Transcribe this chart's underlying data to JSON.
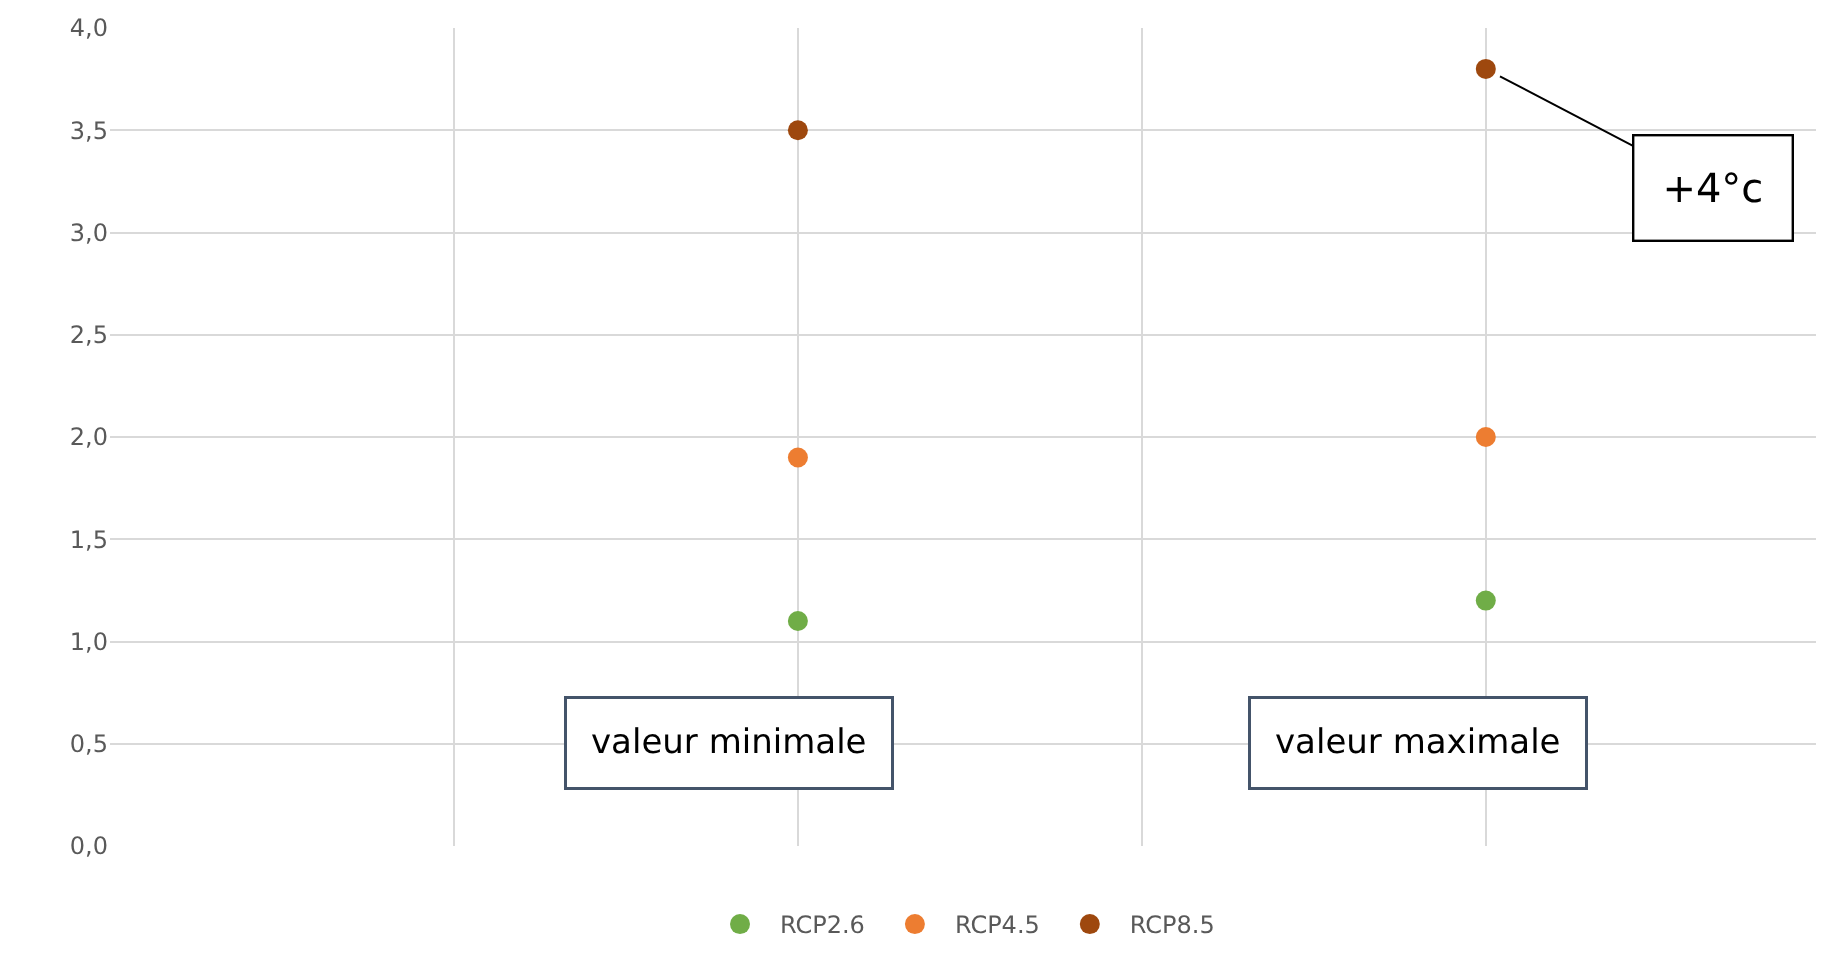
{
  "chart_data": {
    "type": "scatter",
    "categories": [
      null,
      null
    ],
    "series": [
      {
        "name": "RCP2.6",
        "color": "#70ad47",
        "values": [
          1.1,
          1.2
        ]
      },
      {
        "name": "RCP4.5",
        "color": "#ed7d31",
        "values": [
          1.9,
          2.0
        ]
      },
      {
        "name": "RCP8.5",
        "color": "#9e480e",
        "values": [
          3.5,
          3.8
        ]
      }
    ],
    "ylim": [
      0,
      4
    ],
    "yticks": [
      {
        "value": 0,
        "label": "0,0"
      },
      {
        "value": 0.5,
        "label": "0,5"
      },
      {
        "value": 1,
        "label": "1,0"
      },
      {
        "value": 1.5,
        "label": "1,5"
      },
      {
        "value": 2,
        "label": "2,0"
      },
      {
        "value": 2.5,
        "label": "2,5"
      },
      {
        "value": 3,
        "label": "3,0"
      },
      {
        "value": 3.5,
        "label": "3,5"
      },
      {
        "value": 4,
        "label": "4,0"
      }
    ],
    "annotations": [
      "valeur minimale",
      "valeur maximale",
      "+4°c"
    ],
    "grid": true,
    "legend": "bottom",
    "marker": "circle"
  }
}
